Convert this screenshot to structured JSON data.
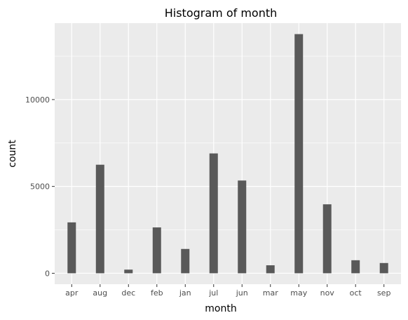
{
  "chart_data": {
    "type": "bar",
    "title": "Histogram of month",
    "xlabel": "month",
    "ylabel": "count",
    "categories": [
      "apr",
      "aug",
      "dec",
      "feb",
      "jan",
      "jul",
      "jun",
      "mar",
      "may",
      "nov",
      "oct",
      "sep"
    ],
    "values": [
      2930,
      6250,
      210,
      2640,
      1400,
      6900,
      5340,
      460,
      13770,
      3970,
      750,
      590
    ],
    "yticks": [
      0,
      5000,
      10000
    ],
    "ylim": [
      -630,
      14400
    ],
    "grid": true,
    "legend": "none",
    "colors": {
      "bar": "#595959",
      "panel": "#ebebeb",
      "grid": "#ffffff"
    }
  }
}
